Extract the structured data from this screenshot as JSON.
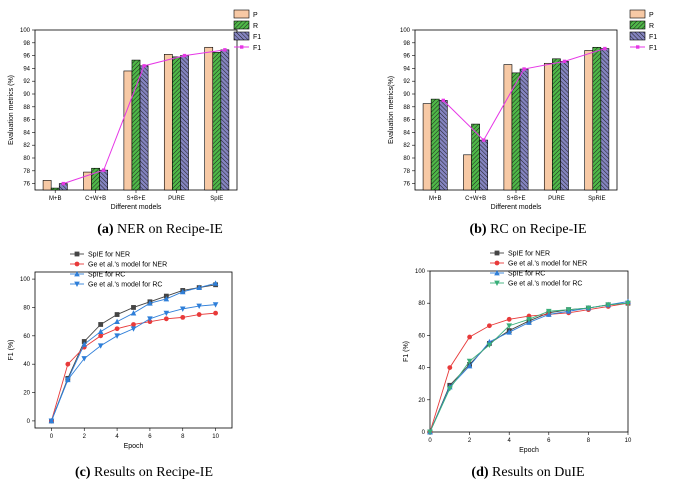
{
  "captions": [
    {
      "tag": "(a)",
      "text": "NER on Recipe-IE"
    },
    {
      "tag": "(b)",
      "text": "RC on Recipe-IE"
    },
    {
      "tag": "(c)",
      "text": "Results on Recipe-IE"
    },
    {
      "tag": "(d)",
      "text": "Results on DuIE"
    }
  ],
  "colors": {
    "P": "#f7c9a5",
    "R": "#4fb848",
    "F1bar": "#6b6bb0",
    "F1line": "#e637e6",
    "black": "#444444",
    "red": "#e83a3a",
    "blue": "#2f7fd9",
    "green": "#3aaf7a"
  },
  "chart_data": [
    {
      "id": "a",
      "type": "bar",
      "xlabel": "Different models",
      "ylabel": "Evaluation metrics (%)",
      "ylim": [
        75,
        100
      ],
      "yticks": [
        76,
        78,
        80,
        82,
        84,
        86,
        88,
        90,
        92,
        94,
        96,
        98,
        100
      ],
      "categories": [
        "M+B",
        "C+W+B",
        "S+B+E",
        "PURE",
        "SpIE"
      ],
      "series": [
        {
          "name": "P",
          "values": [
            76.5,
            77.8,
            93.6,
            96.2,
            97.3
          ]
        },
        {
          "name": "R",
          "values": [
            75.3,
            78.4,
            95.3,
            95.8,
            96.5
          ]
        },
        {
          "name": "F1",
          "values": [
            76.0,
            78.1,
            94.4,
            96.0,
            96.9
          ]
        }
      ],
      "line": {
        "name": "F1",
        "values": [
          76.0,
          78.1,
          94.4,
          96.0,
          96.9
        ]
      },
      "legend": [
        "P",
        "R",
        "F1",
        "F1"
      ]
    },
    {
      "id": "b",
      "type": "bar",
      "xlabel": "Different models",
      "ylabel": "Evaluation metrics(%)",
      "ylim": [
        75,
        100
      ],
      "yticks": [
        76,
        78,
        80,
        82,
        84,
        86,
        88,
        90,
        92,
        94,
        96,
        98,
        100
      ],
      "categories": [
        "M+B",
        "C+W+B",
        "S+B+E",
        "PURE",
        "SpRIE"
      ],
      "series": [
        {
          "name": "P",
          "values": [
            88.5,
            80.5,
            94.6,
            94.8,
            96.8
          ]
        },
        {
          "name": "R",
          "values": [
            89.2,
            85.3,
            93.3,
            95.5,
            97.3
          ]
        },
        {
          "name": "F1",
          "values": [
            89.0,
            82.8,
            93.9,
            95.1,
            97.1
          ]
        }
      ],
      "line": {
        "name": "F1",
        "values": [
          89.0,
          82.8,
          93.9,
          95.1,
          97.1
        ]
      },
      "legend": [
        "P",
        "R",
        "F1",
        "F1"
      ]
    },
    {
      "id": "c",
      "type": "line",
      "xlabel": "Epoch",
      "ylabel": "F1 (%)",
      "xlim": [
        -1,
        11
      ],
      "ylim": [
        -5,
        105
      ],
      "xticks": [
        0,
        2,
        4,
        6,
        8,
        10
      ],
      "yticks": [
        0,
        20,
        40,
        60,
        80,
        100
      ],
      "x": [
        0,
        1,
        2,
        3,
        4,
        5,
        6,
        7,
        8,
        9,
        10
      ],
      "series": [
        {
          "name": "SpIE for NER",
          "marker": "square",
          "color": "black",
          "values": [
            0,
            30,
            56,
            68,
            75,
            80,
            84,
            88,
            92,
            94,
            96
          ]
        },
        {
          "name": "Ge et al.'s model  for NER",
          "marker": "circle",
          "color": "red",
          "values": [
            0,
            40,
            52,
            60,
            65,
            68,
            70,
            72,
            73,
            75,
            76
          ]
        },
        {
          "name": "SpIE  for RC",
          "marker": "triangle",
          "color": "blue",
          "values": [
            0,
            29,
            54,
            63,
            70,
            76,
            83,
            86,
            91,
            94,
            97
          ]
        },
        {
          "name": "Ge et al.'s model for RC",
          "marker": "tri-down",
          "color": "blue",
          "values": [
            0,
            29,
            44,
            53,
            60,
            65,
            72,
            76,
            79,
            81,
            82
          ]
        }
      ]
    },
    {
      "id": "d",
      "type": "line",
      "xlabel": "Epoch",
      "ylabel": "F1 (%)",
      "xlim": [
        0,
        10
      ],
      "ylim": [
        0,
        100
      ],
      "xticks": [
        0,
        2,
        4,
        6,
        8,
        10
      ],
      "yticks": [
        0,
        20,
        40,
        60,
        80,
        100
      ],
      "x": [
        0,
        1,
        2,
        3,
        4,
        5,
        6,
        7,
        8,
        9,
        10
      ],
      "series": [
        {
          "name": "SpIE for NER",
          "marker": "square",
          "color": "black",
          "values": [
            0,
            29,
            42,
            55,
            63,
            69,
            74,
            76,
            77,
            79,
            80
          ]
        },
        {
          "name": "Ge et al.'s model  for NER",
          "marker": "circle",
          "color": "red",
          "values": [
            0,
            40,
            59,
            66,
            70,
            72,
            73,
            74,
            76,
            78,
            80
          ]
        },
        {
          "name": "SpIE  for RC",
          "marker": "triangle",
          "color": "blue",
          "values": [
            0,
            28,
            41,
            56,
            62,
            68,
            73,
            75,
            77,
            79,
            81
          ]
        },
        {
          "name": "Ge et al.'s model for RC",
          "marker": "tri-down",
          "color": "green",
          "values": [
            0,
            27,
            44,
            54,
            66,
            70,
            75,
            76,
            77,
            79,
            80
          ]
        }
      ]
    }
  ]
}
